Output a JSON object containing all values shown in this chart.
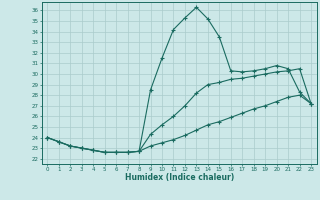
{
  "xlabel": "Humidex (Indice chaleur)",
  "bg_color": "#cce8e8",
  "grid_color": "#aacccc",
  "line_color": "#1a6b60",
  "x_ticks": [
    0,
    1,
    2,
    3,
    4,
    5,
    6,
    7,
    8,
    9,
    10,
    11,
    12,
    13,
    14,
    15,
    16,
    17,
    18,
    19,
    20,
    21,
    22,
    23
  ],
  "y_ticks": [
    22,
    23,
    24,
    25,
    26,
    27,
    28,
    29,
    30,
    31,
    32,
    33,
    34,
    35,
    36
  ],
  "xlim": [
    -0.5,
    23.5
  ],
  "ylim": [
    21.5,
    36.8
  ],
  "series1_y": [
    24.0,
    23.6,
    23.2,
    23.0,
    22.8,
    22.6,
    22.6,
    22.6,
    22.7,
    28.5,
    31.5,
    34.2,
    35.3,
    36.3,
    35.2,
    33.5,
    30.3,
    30.2,
    30.3,
    30.5,
    30.8,
    30.5,
    28.3,
    27.2
  ],
  "series2_y": [
    24.0,
    23.6,
    23.2,
    23.0,
    22.8,
    22.6,
    22.6,
    22.6,
    22.7,
    24.3,
    25.2,
    26.0,
    27.0,
    28.2,
    29.0,
    29.2,
    29.5,
    29.6,
    29.8,
    30.0,
    30.2,
    30.3,
    30.5,
    27.2
  ],
  "series3_y": [
    24.0,
    23.6,
    23.2,
    23.0,
    22.8,
    22.6,
    22.6,
    22.6,
    22.7,
    23.2,
    23.5,
    23.8,
    24.2,
    24.7,
    25.2,
    25.5,
    25.9,
    26.3,
    26.7,
    27.0,
    27.4,
    27.8,
    28.0,
    27.2
  ]
}
